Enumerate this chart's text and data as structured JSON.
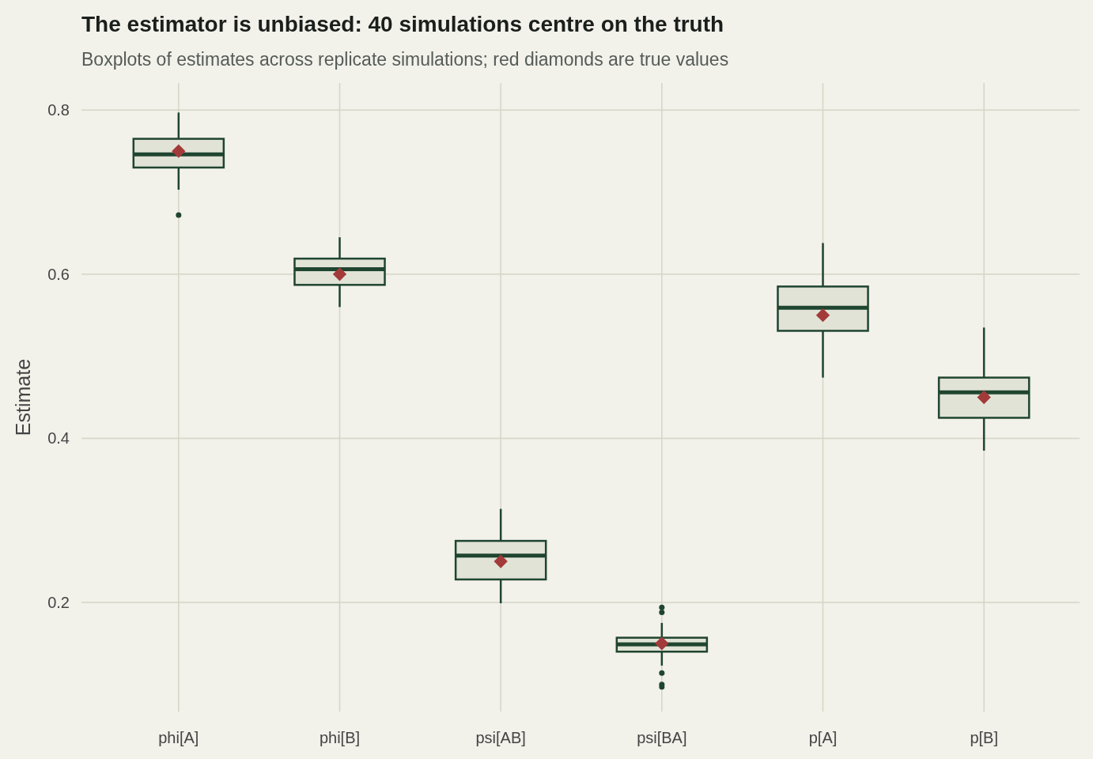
{
  "chart_data": {
    "type": "box",
    "title": "The estimator is unbiased: 40 simulations centre on the truth",
    "subtitle": "Boxplots of estimates across replicate simulations; red diamonds are true values",
    "ylabel": "Estimate",
    "categories": [
      "phi[A]",
      "phi[B]",
      "psi[AB]",
      "psi[BA]",
      "p[A]",
      "p[B]"
    ],
    "ylim": [
      0.067,
      0.833
    ],
    "yticks": [
      0.2,
      0.4,
      0.6,
      0.8
    ],
    "grid": true,
    "color": "#e1e3d6",
    "boxes": [
      {
        "low": 0.703,
        "q1": 0.73,
        "median": 0.746,
        "q3": 0.765,
        "high": 0.797,
        "outliers": [
          0.672
        ]
      },
      {
        "low": 0.56,
        "q1": 0.587,
        "median": 0.606,
        "q3": 0.619,
        "high": 0.645
      },
      {
        "low": 0.199,
        "q1": 0.228,
        "median": 0.257,
        "q3": 0.275,
        "high": 0.314
      },
      {
        "low": 0.123,
        "q1": 0.14,
        "median": 0.149,
        "q3": 0.157,
        "high": 0.175,
        "outliers": [
          0.194,
          0.188,
          0.114,
          0.1,
          0.097
        ]
      },
      {
        "low": 0.474,
        "q1": 0.531,
        "median": 0.559,
        "q3": 0.585,
        "high": 0.638
      },
      {
        "low": 0.385,
        "q1": 0.425,
        "median": 0.456,
        "q3": 0.474,
        "high": 0.535
      }
    ],
    "series": [
      {
        "type": "scatter",
        "color": "#a33a3a",
        "marker": "diamond",
        "x": [
          "phi[A]",
          "phi[B]",
          "psi[AB]",
          "psi[BA]",
          "p[A]",
          "p[B]"
        ],
        "values": [
          0.75,
          0.6,
          0.25,
          0.15,
          0.55,
          0.45
        ]
      }
    ]
  }
}
